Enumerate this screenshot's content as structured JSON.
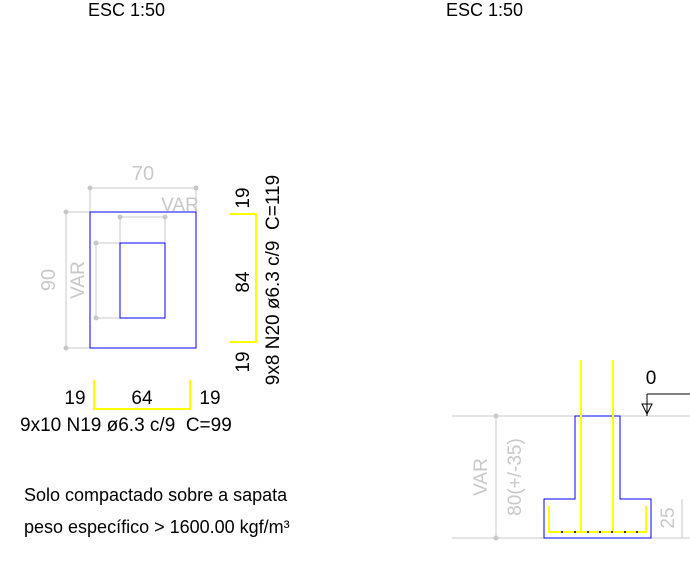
{
  "plan_view": {
    "scale": "ESC 1:50",
    "dim_width": "70",
    "dim_height": "90",
    "var_label_top": "VAR",
    "var_label_side": "VAR",
    "bar_n19": {
      "hook_left": "19",
      "length": "64",
      "hook_right": "19",
      "spec": "9x10 N19 ø6.3 c/9  C=99"
    },
    "bar_n20": {
      "hook_top": "19",
      "length": "84",
      "hook_bottom": "19",
      "spec": "9x8 N20 ø6.3 c/9  C=119"
    }
  },
  "section_view": {
    "scale": "ESC 1:50",
    "level": "0",
    "dim_var": "VAR",
    "dim_depth": "80(+/-35)",
    "dim_base": "25"
  },
  "notes": {
    "line1": "Solo compactado sobre a sapata",
    "line2": "peso específico > 1600.00 kgf/m³"
  },
  "colors": {
    "outline": "#0000ff",
    "rebar": "#ffff00",
    "dimension": "#c8c8c8",
    "text": "#000000"
  }
}
